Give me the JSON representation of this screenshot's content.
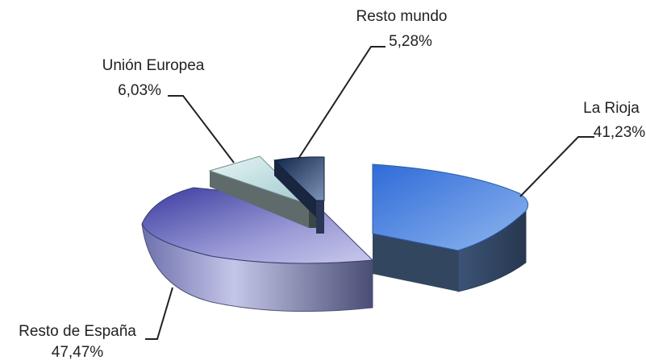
{
  "chart_data": {
    "type": "pie",
    "title": "",
    "slices": [
      {
        "label": "La Rioja",
        "value": 41.23,
        "value_label": "41,23%",
        "color": "#4a7fd4"
      },
      {
        "label": "Resto de España",
        "value": 47.47,
        "value_label": "47,47%",
        "color": "#8a8cc8"
      },
      {
        "label": "Unión Europea",
        "value": 6.03,
        "value_label": "6,03%",
        "color": "#c9e4e4"
      },
      {
        "label": "Resto mundo",
        "value": 5.28,
        "value_label": "5,28%",
        "color": "#1f3a6b"
      }
    ],
    "style": "3d-exploded",
    "legend": "none"
  }
}
